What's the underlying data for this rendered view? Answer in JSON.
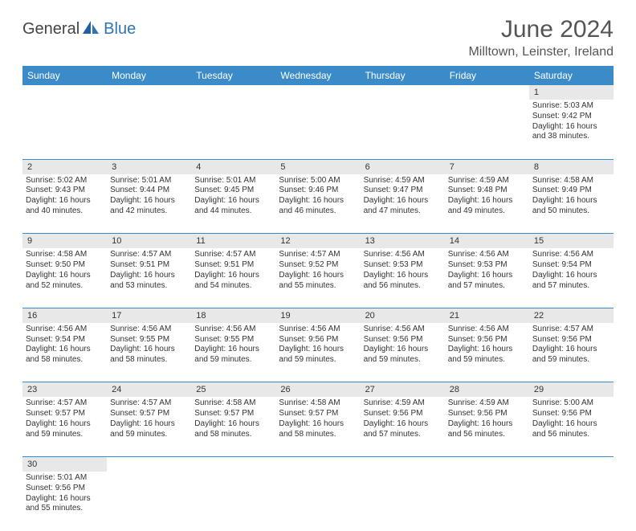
{
  "logo": {
    "part1": "General",
    "part2": "Blue"
  },
  "title": "June 2024",
  "location": "Milltown, Leinster, Ireland",
  "colors": {
    "header_bg": "#3b8bc9",
    "header_text": "#ffffff",
    "daynum_bg": "#e8e8e8",
    "cell_border": "#3b8bc9",
    "text": "#333333",
    "title": "#555555",
    "logo_blue": "#2e75b6"
  },
  "weekdays": [
    "Sunday",
    "Monday",
    "Tuesday",
    "Wednesday",
    "Thursday",
    "Friday",
    "Saturday"
  ],
  "weeks": [
    {
      "nums": [
        "",
        "",
        "",
        "",
        "",
        "",
        "1"
      ],
      "cells": [
        null,
        null,
        null,
        null,
        null,
        null,
        {
          "sr": "Sunrise: 5:03 AM",
          "ss": "Sunset: 9:42 PM",
          "d1": "Daylight: 16 hours",
          "d2": "and 38 minutes."
        }
      ]
    },
    {
      "nums": [
        "2",
        "3",
        "4",
        "5",
        "6",
        "7",
        "8"
      ],
      "cells": [
        {
          "sr": "Sunrise: 5:02 AM",
          "ss": "Sunset: 9:43 PM",
          "d1": "Daylight: 16 hours",
          "d2": "and 40 minutes."
        },
        {
          "sr": "Sunrise: 5:01 AM",
          "ss": "Sunset: 9:44 PM",
          "d1": "Daylight: 16 hours",
          "d2": "and 42 minutes."
        },
        {
          "sr": "Sunrise: 5:01 AM",
          "ss": "Sunset: 9:45 PM",
          "d1": "Daylight: 16 hours",
          "d2": "and 44 minutes."
        },
        {
          "sr": "Sunrise: 5:00 AM",
          "ss": "Sunset: 9:46 PM",
          "d1": "Daylight: 16 hours",
          "d2": "and 46 minutes."
        },
        {
          "sr": "Sunrise: 4:59 AM",
          "ss": "Sunset: 9:47 PM",
          "d1": "Daylight: 16 hours",
          "d2": "and 47 minutes."
        },
        {
          "sr": "Sunrise: 4:59 AM",
          "ss": "Sunset: 9:48 PM",
          "d1": "Daylight: 16 hours",
          "d2": "and 49 minutes."
        },
        {
          "sr": "Sunrise: 4:58 AM",
          "ss": "Sunset: 9:49 PM",
          "d1": "Daylight: 16 hours",
          "d2": "and 50 minutes."
        }
      ]
    },
    {
      "nums": [
        "9",
        "10",
        "11",
        "12",
        "13",
        "14",
        "15"
      ],
      "cells": [
        {
          "sr": "Sunrise: 4:58 AM",
          "ss": "Sunset: 9:50 PM",
          "d1": "Daylight: 16 hours",
          "d2": "and 52 minutes."
        },
        {
          "sr": "Sunrise: 4:57 AM",
          "ss": "Sunset: 9:51 PM",
          "d1": "Daylight: 16 hours",
          "d2": "and 53 minutes."
        },
        {
          "sr": "Sunrise: 4:57 AM",
          "ss": "Sunset: 9:51 PM",
          "d1": "Daylight: 16 hours",
          "d2": "and 54 minutes."
        },
        {
          "sr": "Sunrise: 4:57 AM",
          "ss": "Sunset: 9:52 PM",
          "d1": "Daylight: 16 hours",
          "d2": "and 55 minutes."
        },
        {
          "sr": "Sunrise: 4:56 AM",
          "ss": "Sunset: 9:53 PM",
          "d1": "Daylight: 16 hours",
          "d2": "and 56 minutes."
        },
        {
          "sr": "Sunrise: 4:56 AM",
          "ss": "Sunset: 9:53 PM",
          "d1": "Daylight: 16 hours",
          "d2": "and 57 minutes."
        },
        {
          "sr": "Sunrise: 4:56 AM",
          "ss": "Sunset: 9:54 PM",
          "d1": "Daylight: 16 hours",
          "d2": "and 57 minutes."
        }
      ]
    },
    {
      "nums": [
        "16",
        "17",
        "18",
        "19",
        "20",
        "21",
        "22"
      ],
      "cells": [
        {
          "sr": "Sunrise: 4:56 AM",
          "ss": "Sunset: 9:54 PM",
          "d1": "Daylight: 16 hours",
          "d2": "and 58 minutes."
        },
        {
          "sr": "Sunrise: 4:56 AM",
          "ss": "Sunset: 9:55 PM",
          "d1": "Daylight: 16 hours",
          "d2": "and 58 minutes."
        },
        {
          "sr": "Sunrise: 4:56 AM",
          "ss": "Sunset: 9:55 PM",
          "d1": "Daylight: 16 hours",
          "d2": "and 59 minutes."
        },
        {
          "sr": "Sunrise: 4:56 AM",
          "ss": "Sunset: 9:56 PM",
          "d1": "Daylight: 16 hours",
          "d2": "and 59 minutes."
        },
        {
          "sr": "Sunrise: 4:56 AM",
          "ss": "Sunset: 9:56 PM",
          "d1": "Daylight: 16 hours",
          "d2": "and 59 minutes."
        },
        {
          "sr": "Sunrise: 4:56 AM",
          "ss": "Sunset: 9:56 PM",
          "d1": "Daylight: 16 hours",
          "d2": "and 59 minutes."
        },
        {
          "sr": "Sunrise: 4:57 AM",
          "ss": "Sunset: 9:56 PM",
          "d1": "Daylight: 16 hours",
          "d2": "and 59 minutes."
        }
      ]
    },
    {
      "nums": [
        "23",
        "24",
        "25",
        "26",
        "27",
        "28",
        "29"
      ],
      "cells": [
        {
          "sr": "Sunrise: 4:57 AM",
          "ss": "Sunset: 9:57 PM",
          "d1": "Daylight: 16 hours",
          "d2": "and 59 minutes."
        },
        {
          "sr": "Sunrise: 4:57 AM",
          "ss": "Sunset: 9:57 PM",
          "d1": "Daylight: 16 hours",
          "d2": "and 59 minutes."
        },
        {
          "sr": "Sunrise: 4:58 AM",
          "ss": "Sunset: 9:57 PM",
          "d1": "Daylight: 16 hours",
          "d2": "and 58 minutes."
        },
        {
          "sr": "Sunrise: 4:58 AM",
          "ss": "Sunset: 9:57 PM",
          "d1": "Daylight: 16 hours",
          "d2": "and 58 minutes."
        },
        {
          "sr": "Sunrise: 4:59 AM",
          "ss": "Sunset: 9:56 PM",
          "d1": "Daylight: 16 hours",
          "d2": "and 57 minutes."
        },
        {
          "sr": "Sunrise: 4:59 AM",
          "ss": "Sunset: 9:56 PM",
          "d1": "Daylight: 16 hours",
          "d2": "and 56 minutes."
        },
        {
          "sr": "Sunrise: 5:00 AM",
          "ss": "Sunset: 9:56 PM",
          "d1": "Daylight: 16 hours",
          "d2": "and 56 minutes."
        }
      ]
    },
    {
      "nums": [
        "30",
        "",
        "",
        "",
        "",
        "",
        ""
      ],
      "cells": [
        {
          "sr": "Sunrise: 5:01 AM",
          "ss": "Sunset: 9:56 PM",
          "d1": "Daylight: 16 hours",
          "d2": "and 55 minutes."
        },
        null,
        null,
        null,
        null,
        null,
        null
      ]
    }
  ]
}
